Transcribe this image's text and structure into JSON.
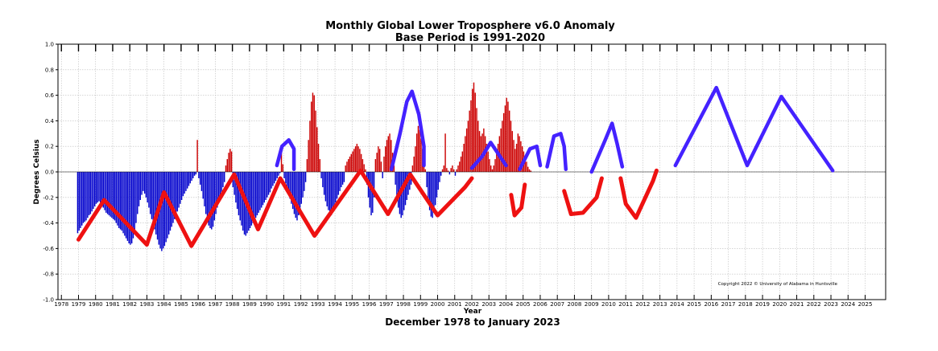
{
  "chart_data": {
    "type": "bar",
    "title": "Monthly Global Lower Troposphere v6.0 Anomaly",
    "subtitle": "Base Period is 1991-2020",
    "xlabel": "Year",
    "ylabel": "Degrees Celsius",
    "footer": "December 1978 to January 2023",
    "copyright": "Copyright 2022 © University of Alabama in Huntsville",
    "xlim": [
      1977.8,
      2026.2
    ],
    "ylim": [
      -1.0,
      1.0
    ],
    "grid": true,
    "x_ticks": [
      1978,
      1979,
      1980,
      1981,
      1982,
      1983,
      1984,
      1985,
      1986,
      1987,
      1988,
      1989,
      1990,
      1991,
      1992,
      1993,
      1994,
      1995,
      1996,
      1997,
      1998,
      1999,
      2000,
      2001,
      2002,
      2003,
      2004,
      2005,
      2006,
      2007,
      2008,
      2009,
      2010,
      2011,
      2012,
      2013,
      2014,
      2015,
      2016,
      2017,
      2018,
      2019,
      2020,
      2021,
      2022,
      2023,
      2024,
      2025
    ],
    "y_ticks": [
      "1.0",
      "0.8",
      "0.6",
      "0.4",
      "0.2",
      "0.0",
      "-0.2",
      "-0.4",
      "-0.6",
      "-0.8",
      "-1.0"
    ],
    "colors": {
      "positive": "#cc0000",
      "negative": "#0000cc",
      "red_trace": "#ee1111",
      "blue_trace": "#4422ff"
    },
    "series": [
      {
        "x_start": 1978.95,
        "step": 0.0833333,
        "values_per_year": 12,
        "values": [
          -0.48,
          -0.46,
          -0.44,
          -0.42,
          -0.4,
          -0.39,
          -0.38,
          -0.36,
          -0.34,
          -0.33,
          -0.31,
          -0.29,
          -0.27,
          -0.25,
          -0.24,
          -0.23,
          -0.24,
          -0.26,
          -0.28,
          -0.3,
          -0.32,
          -0.33,
          -0.34,
          -0.35,
          -0.36,
          -0.37,
          -0.38,
          -0.4,
          -0.42,
          -0.44,
          -0.45,
          -0.46,
          -0.48,
          -0.5,
          -0.52,
          -0.54,
          -0.56,
          -0.57,
          -0.56,
          -0.52,
          -0.46,
          -0.4,
          -0.33,
          -0.27,
          -0.22,
          -0.18,
          -0.15,
          -0.17,
          -0.2,
          -0.24,
          -0.28,
          -0.33,
          -0.37,
          -0.41,
          -0.45,
          -0.49,
          -0.53,
          -0.57,
          -0.6,
          -0.62,
          -0.6,
          -0.58,
          -0.55,
          -0.52,
          -0.49,
          -0.46,
          -0.43,
          -0.4,
          -0.37,
          -0.34,
          -0.31,
          -0.28,
          -0.25,
          -0.22,
          -0.19,
          -0.17,
          -0.15,
          -0.13,
          -0.11,
          -0.09,
          -0.07,
          -0.05,
          -0.03,
          -0.02,
          0.25,
          -0.05,
          -0.1,
          -0.15,
          -0.21,
          -0.27,
          -0.33,
          -0.38,
          -0.42,
          -0.44,
          -0.45,
          -0.43,
          -0.38,
          -0.33,
          -0.28,
          -0.24,
          -0.2,
          -0.16,
          -0.12,
          -0.08,
          0.05,
          0.1,
          0.15,
          0.18,
          0.16,
          -0.12,
          -0.18,
          -0.24,
          -0.29,
          -0.34,
          -0.38,
          -0.42,
          -0.46,
          -0.49,
          -0.5,
          -0.48,
          -0.46,
          -0.44,
          -0.42,
          -0.4,
          -0.38,
          -0.36,
          -0.34,
          -0.32,
          -0.3,
          -0.28,
          -0.26,
          -0.24,
          -0.22,
          -0.2,
          -0.18,
          -0.16,
          -0.13,
          -0.11,
          -0.09,
          -0.07,
          -0.05,
          -0.03,
          -0.01,
          0.15,
          0.06,
          -0.05,
          -0.09,
          -0.13,
          -0.17,
          -0.21,
          -0.25,
          -0.29,
          -0.33,
          -0.36,
          -0.38,
          -0.34,
          -0.3,
          -0.25,
          -0.2,
          -0.15,
          -0.08,
          0.1,
          0.25,
          0.4,
          0.55,
          0.62,
          0.6,
          0.48,
          0.35,
          0.22,
          0.1,
          -0.05,
          -0.12,
          -0.18,
          -0.23,
          -0.27,
          -0.3,
          -0.32,
          -0.34,
          -0.3,
          -0.27,
          -0.24,
          -0.21,
          -0.18,
          -0.15,
          -0.12,
          -0.1,
          -0.08,
          0.05,
          0.08,
          0.1,
          0.12,
          0.14,
          0.16,
          0.18,
          0.2,
          0.22,
          0.2,
          0.18,
          0.14,
          0.1,
          0.06,
          0.02,
          -0.1,
          -0.2,
          -0.28,
          -0.34,
          -0.32,
          -0.2,
          0.1,
          0.15,
          0.2,
          0.18,
          0.08,
          -0.05,
          0.12,
          0.2,
          0.25,
          0.28,
          0.3,
          0.25,
          0.15,
          0.05,
          -0.1,
          -0.2,
          -0.28,
          -0.33,
          -0.36,
          -0.34,
          -0.3,
          -0.26,
          -0.22,
          -0.18,
          -0.14,
          -0.1,
          0.05,
          0.12,
          0.2,
          0.3,
          0.36,
          0.33,
          0.26,
          0.18,
          0.1,
          0.02,
          -0.12,
          -0.22,
          -0.3,
          -0.35,
          -0.36,
          -0.32,
          -0.26,
          -0.2,
          -0.14,
          -0.08,
          -0.03,
          0.02,
          0.05,
          0.3,
          0.03,
          0.01,
          -0.02,
          0.03,
          0.05,
          0.02,
          -0.03,
          0.02,
          0.05,
          0.08,
          0.12,
          0.16,
          0.22,
          0.28,
          0.34,
          0.4,
          0.48,
          0.56,
          0.65,
          0.7,
          0.62,
          0.5,
          0.4,
          0.32,
          0.28,
          0.3,
          0.34,
          0.28,
          0.22,
          0.16,
          0.1,
          0.05,
          0.02,
          0.05,
          0.1,
          0.16,
          0.22,
          0.28,
          0.34,
          0.4,
          0.46,
          0.52,
          0.58,
          0.55,
          0.48,
          0.4,
          0.32,
          0.25,
          0.18,
          0.22,
          0.3,
          0.28,
          0.24,
          0.2,
          0.16,
          0.12,
          0.08,
          0.04,
          0.02,
          0.01
        ]
      }
    ],
    "annotation_traces": [
      {
        "color": "red",
        "points": [
          [
            1979.0,
            -0.53
          ],
          [
            1980.5,
            -0.22
          ],
          [
            1983.0,
            -0.57
          ],
          [
            1984.0,
            -0.16
          ],
          [
            1985.6,
            -0.58
          ],
          [
            1988.1,
            -0.02
          ],
          [
            1989.5,
            -0.45
          ],
          [
            1990.8,
            -0.05
          ],
          [
            1992.8,
            -0.5
          ],
          [
            1995.5,
            0.01
          ],
          [
            1997.1,
            -0.33
          ],
          [
            1998.4,
            -0.02
          ],
          [
            2000.0,
            -0.34
          ],
          [
            2001.6,
            -0.12
          ],
          [
            2002.0,
            -0.05
          ]
        ]
      },
      {
        "color": "red",
        "points": [
          [
            2004.3,
            -0.18
          ],
          [
            2004.5,
            -0.34
          ],
          [
            2004.9,
            -0.28
          ],
          [
            2005.1,
            -0.1
          ]
        ]
      },
      {
        "color": "red",
        "points": [
          [
            2007.4,
            -0.15
          ],
          [
            2007.8,
            -0.33
          ],
          [
            2008.5,
            -0.32
          ],
          [
            2009.3,
            -0.2
          ],
          [
            2009.6,
            -0.05
          ]
        ]
      },
      {
        "color": "red",
        "points": [
          [
            2010.7,
            -0.05
          ],
          [
            2011.0,
            -0.25
          ],
          [
            2011.6,
            -0.36
          ],
          [
            2012.6,
            -0.07
          ],
          [
            2012.8,
            0.01
          ]
        ]
      },
      {
        "color": "blue",
        "points": [
          [
            1990.6,
            0.05
          ],
          [
            1990.9,
            0.2
          ],
          [
            1991.3,
            0.25
          ],
          [
            1991.6,
            0.18
          ],
          [
            1991.6,
            0.02
          ]
        ]
      },
      {
        "color": "blue",
        "points": [
          [
            1997.3,
            0.02
          ],
          [
            1997.8,
            0.3
          ],
          [
            1998.2,
            0.55
          ],
          [
            1998.5,
            0.63
          ],
          [
            1998.9,
            0.45
          ],
          [
            1999.2,
            0.2
          ],
          [
            1999.2,
            0.05
          ]
        ]
      },
      {
        "color": "blue",
        "points": [
          [
            2002.0,
            0.03
          ],
          [
            2002.6,
            0.12
          ],
          [
            2003.1,
            0.23
          ],
          [
            2004.0,
            0.05
          ]
        ]
      },
      {
        "color": "blue",
        "points": [
          [
            2004.8,
            0.02
          ],
          [
            2005.4,
            0.18
          ],
          [
            2005.8,
            0.2
          ],
          [
            2006.0,
            0.05
          ]
        ]
      },
      {
        "color": "blue",
        "points": [
          [
            2006.4,
            0.04
          ],
          [
            2006.8,
            0.28
          ],
          [
            2007.2,
            0.3
          ],
          [
            2007.4,
            0.2
          ],
          [
            2007.5,
            0.02
          ]
        ]
      },
      {
        "color": "blue",
        "points": [
          [
            2009.0,
            0.0
          ],
          [
            2009.8,
            0.25
          ],
          [
            2010.2,
            0.38
          ],
          [
            2010.5,
            0.22
          ],
          [
            2010.8,
            0.04
          ]
        ]
      },
      {
        "color": "blue",
        "points": [
          [
            2013.9,
            0.05
          ],
          [
            2016.3,
            0.66
          ],
          [
            2018.1,
            0.05
          ],
          [
            2020.1,
            0.59
          ],
          [
            2023.1,
            0.01
          ]
        ]
      }
    ]
  }
}
